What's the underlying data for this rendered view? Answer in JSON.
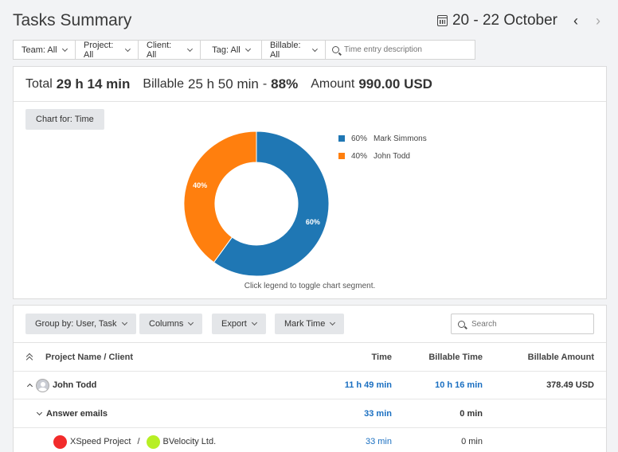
{
  "header": {
    "title": "Tasks Summary",
    "date_range": "20 - 22 October",
    "prev_icon": "‹",
    "next_icon": "›"
  },
  "filters": {
    "items": [
      {
        "label": "Team: All"
      },
      {
        "label": "Project: All"
      },
      {
        "label": "Client: All"
      },
      {
        "label": "Tag: All"
      },
      {
        "label": "Billable: All"
      }
    ],
    "search_placeholder": "Time entry description"
  },
  "totals": {
    "total_label": "Total",
    "total_value": "29 h 14 min",
    "billable_label": "Billable",
    "billable_value": "25 h 50 min",
    "billable_sep": "-",
    "billable_pct": "88%",
    "amount_label": "Amount",
    "amount_value": "990.00 USD"
  },
  "chart": {
    "button_label": "Chart for: Time",
    "hint": "Click legend to toggle chart segment."
  },
  "chart_data": {
    "type": "pie",
    "categories": [
      "Mark Simmons",
      "John Todd"
    ],
    "values": [
      60,
      40
    ],
    "labels": [
      "60%",
      "40%"
    ],
    "colors": [
      "#1f77b4",
      "#ff7f0e"
    ],
    "legend_position": "right"
  },
  "toolbar": {
    "group_by": "Group by: User, Task",
    "columns": "Columns",
    "export": "Export",
    "mark_time": "Mark Time",
    "search_placeholder": "Search"
  },
  "table": {
    "headers": {
      "name": "Project Name / Client",
      "time": "Time",
      "billable_time": "Billable Time",
      "billable_amount": "Billable Amount"
    },
    "user_row": {
      "name": "John Todd",
      "time": "11 h 49 min",
      "billable_time": "10 h 16 min",
      "billable_amount": "378.49 USD"
    },
    "task_row": {
      "name": "Answer emails",
      "time": "33 min",
      "billable_time": "0 min"
    },
    "project_row": {
      "project": "XSpeed Project",
      "sep": "/",
      "client": "BVelocity Ltd.",
      "project_color": "#f22b2b",
      "client_color": "#b7ef24",
      "time": "33 min",
      "billable_time": "0 min"
    }
  }
}
